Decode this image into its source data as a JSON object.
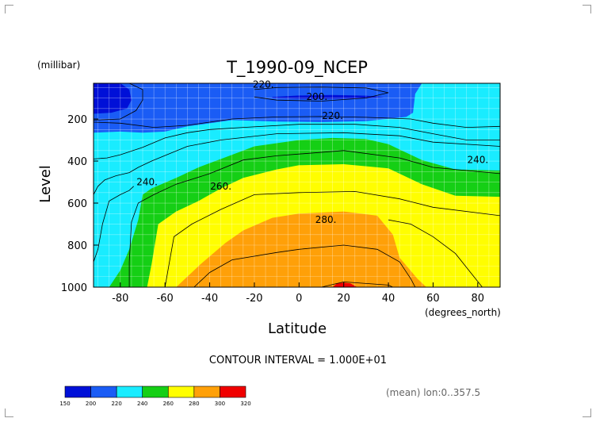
{
  "chart_data": {
    "type": "contour",
    "title": "T_1990-09_NCEP",
    "xlabel": "Latitude",
    "ylabel": "Level",
    "x_unit": "(degrees_north)",
    "y_unit": "(millibar)",
    "xlim": [
      -92,
      90
    ],
    "ylim": [
      1000,
      30
    ],
    "xticks": [
      -80,
      -60,
      -40,
      -20,
      0,
      20,
      40,
      60,
      80
    ],
    "xtick_labels": [
      "-80",
      "-60",
      "-40",
      "-20",
      "0",
      "20",
      "40",
      "60",
      "80"
    ],
    "yticks": [
      200,
      400,
      600,
      800,
      1000
    ],
    "ytick_labels": [
      "200",
      "400",
      "600",
      "800",
      "1000"
    ],
    "grid": true,
    "contour_interval_text": "CONTOUR INTERVAL = 1.000E+01",
    "contour_labels": [
      {
        "text": "220.",
        "x": -16,
        "y": 35
      },
      {
        "text": "200.",
        "x": 8,
        "y": 95
      },
      {
        "text": "220.",
        "x": 15,
        "y": 185
      },
      {
        "text": "240.",
        "x": -68,
        "y": 500
      },
      {
        "text": "260.",
        "x": -35,
        "y": 520
      },
      {
        "text": "240.",
        "x": 80,
        "y": 395
      },
      {
        "text": "280.",
        "x": 12,
        "y": 680
      }
    ],
    "color_levels": [
      150,
      200,
      220,
      240,
      260,
      280,
      300,
      320
    ],
    "colorbar_labels": [
      "150",
      "200",
      "220",
      "240",
      "260",
      "280",
      "300",
      "320"
    ],
    "fill_colors": [
      "#0010d8",
      "#1a5cf5",
      "#19ecff",
      "#15cf15",
      "#fffe00",
      "#ffa008",
      "#f00000"
    ],
    "regions": [
      {
        "level": "200-220",
        "color": "#1a5cf5",
        "points": [
          [
            -92,
            30
          ],
          [
            55,
            30
          ],
          [
            52,
            80
          ],
          [
            51,
            170
          ],
          [
            48,
            190
          ],
          [
            30,
            210
          ],
          [
            10,
            215
          ],
          [
            -10,
            212
          ],
          [
            -30,
            205
          ],
          [
            -50,
            235
          ],
          [
            -60,
            260
          ],
          [
            -70,
            265
          ],
          [
            -80,
            260
          ],
          [
            -92,
            265
          ]
        ]
      },
      {
        "level": "<200",
        "color": "#0010d8",
        "points": [
          [
            -92,
            30
          ],
          [
            -80,
            30
          ],
          [
            -76,
            60
          ],
          [
            -75,
            110
          ],
          [
            -77,
            150
          ],
          [
            -84,
            170
          ],
          [
            -92,
            175
          ]
        ]
      },
      {
        "level": "<200",
        "color": "#0010d8",
        "points": [
          [
            -12,
            95
          ],
          [
            0,
            88
          ],
          [
            15,
            86
          ],
          [
            30,
            89
          ],
          [
            38,
            95
          ],
          [
            30,
            102
          ],
          [
            15,
            104
          ],
          [
            0,
            104
          ],
          [
            -12,
            100
          ]
        ]
      },
      {
        "level": "240-260",
        "color": "#15cf15",
        "points": [
          [
            -85,
            1000
          ],
          [
            -80,
            920
          ],
          [
            -76,
            820
          ],
          [
            -72,
            680
          ],
          [
            -70,
            560
          ],
          [
            -66,
            530
          ],
          [
            -55,
            480
          ],
          [
            -45,
            430
          ],
          [
            -30,
            370
          ],
          [
            -20,
            330
          ],
          [
            0,
            300
          ],
          [
            15,
            290
          ],
          [
            30,
            295
          ],
          [
            40,
            320
          ],
          [
            55,
            395
          ],
          [
            70,
            440
          ],
          [
            90,
            445
          ],
          [
            90,
            1000
          ]
        ]
      },
      {
        "level": "260-280",
        "color": "#fffe00",
        "points": [
          [
            -68,
            1000
          ],
          [
            -66,
            890
          ],
          [
            -63,
            700
          ],
          [
            -55,
            640
          ],
          [
            -45,
            590
          ],
          [
            -35,
            530
          ],
          [
            -25,
            480
          ],
          [
            -10,
            440
          ],
          [
            0,
            420
          ],
          [
            20,
            415
          ],
          [
            40,
            435
          ],
          [
            55,
            510
          ],
          [
            70,
            565
          ],
          [
            90,
            570
          ],
          [
            90,
            1000
          ]
        ]
      },
      {
        "level": "280-300",
        "color": "#ffa008",
        "points": [
          [
            -55,
            1000
          ],
          [
            -44,
            890
          ],
          [
            -33,
            790
          ],
          [
            -25,
            730
          ],
          [
            -12,
            670
          ],
          [
            0,
            650
          ],
          [
            20,
            640
          ],
          [
            35,
            660
          ],
          [
            42,
            750
          ],
          [
            45,
            860
          ],
          [
            53,
            960
          ],
          [
            57,
            1000
          ]
        ]
      },
      {
        "level": ">300",
        "color": "#f00000",
        "points": [
          [
            15,
            1000
          ],
          [
            17,
            982
          ],
          [
            20,
            978
          ],
          [
            23,
            982
          ],
          [
            26,
            1000
          ]
        ]
      }
    ],
    "contour_lines": [
      [
        [
          -76,
          30
        ],
        [
          -70,
          60
        ],
        [
          -70,
          110
        ],
        [
          -73,
          160
        ],
        [
          -80,
          200
        ],
        [
          -92,
          205
        ]
      ],
      [
        [
          -92,
          215
        ],
        [
          -80,
          220
        ],
        [
          -65,
          240
        ],
        [
          -50,
          230
        ],
        [
          -30,
          200
        ],
        [
          -10,
          190
        ],
        [
          10,
          188
        ],
        [
          30,
          192
        ],
        [
          50,
          200
        ],
        [
          60,
          220
        ],
        [
          75,
          240
        ],
        [
          90,
          235
        ]
      ],
      [
        [
          -20,
          60
        ],
        [
          -10,
          50
        ],
        [
          10,
          48
        ],
        [
          30,
          52
        ],
        [
          40,
          75
        ],
        [
          30,
          100
        ],
        [
          10,
          115
        ],
        [
          -10,
          110
        ],
        [
          -20,
          95
        ]
      ],
      [
        [
          -92,
          390
        ],
        [
          -86,
          385
        ],
        [
          -80,
          370
        ],
        [
          -70,
          335
        ],
        [
          -60,
          290
        ],
        [
          -50,
          265
        ],
        [
          -40,
          250
        ],
        [
          -25,
          240
        ],
        [
          0,
          225
        ],
        [
          25,
          225
        ],
        [
          45,
          240
        ],
        [
          60,
          270
        ],
        [
          75,
          300
        ],
        [
          90,
          300
        ]
      ],
      [
        [
          -92,
          560
        ],
        [
          -90,
          520
        ],
        [
          -87,
          490
        ],
        [
          -82,
          470
        ],
        [
          -76,
          455
        ],
        [
          -72,
          430
        ],
        [
          -66,
          400
        ],
        [
          -50,
          330
        ],
        [
          -35,
          300
        ],
        [
          -10,
          270
        ],
        [
          20,
          265
        ],
        [
          45,
          280
        ],
        [
          60,
          310
        ],
        [
          90,
          330
        ]
      ],
      [
        [
          -92,
          880
        ],
        [
          -90,
          820
        ],
        [
          -88,
          700
        ],
        [
          -85,
          590
        ],
        [
          -80,
          560
        ],
        [
          -76,
          540
        ],
        [
          -74,
          520
        ]
      ],
      [
        [
          -76,
          1000
        ],
        [
          -76,
          880
        ],
        [
          -75,
          690
        ],
        [
          -72,
          600
        ],
        [
          -65,
          560
        ],
        [
          -55,
          510
        ],
        [
          -40,
          460
        ],
        [
          -25,
          395
        ],
        [
          -10,
          375
        ],
        [
          20,
          350
        ],
        [
          45,
          385
        ],
        [
          60,
          430
        ],
        [
          90,
          460
        ]
      ],
      [
        [
          -60,
          1000
        ],
        [
          -58,
          880
        ],
        [
          -56,
          760
        ],
        [
          -48,
          700
        ],
        [
          -35,
          630
        ],
        [
          -20,
          560
        ],
        [
          0,
          550
        ],
        [
          25,
          545
        ],
        [
          45,
          580
        ],
        [
          60,
          620
        ],
        [
          90,
          660
        ]
      ],
      [
        [
          -47,
          1000
        ],
        [
          -40,
          930
        ],
        [
          -30,
          870
        ],
        [
          -10,
          835
        ],
        [
          0,
          820
        ],
        [
          20,
          800
        ],
        [
          35,
          820
        ],
        [
          45,
          880
        ],
        [
          50,
          960
        ],
        [
          52,
          1000
        ]
      ],
      [
        [
          10,
          1000
        ],
        [
          20,
          975
        ],
        [
          40,
          990
        ],
        [
          42,
          1000
        ]
      ],
      [
        [
          82,
          1000
        ],
        [
          76,
          920
        ],
        [
          70,
          840
        ],
        [
          60,
          760
        ],
        [
          50,
          700
        ],
        [
          40,
          680
        ]
      ]
    ]
  },
  "footer": {
    "mean_text": "(mean) lon:0..357.5"
  }
}
